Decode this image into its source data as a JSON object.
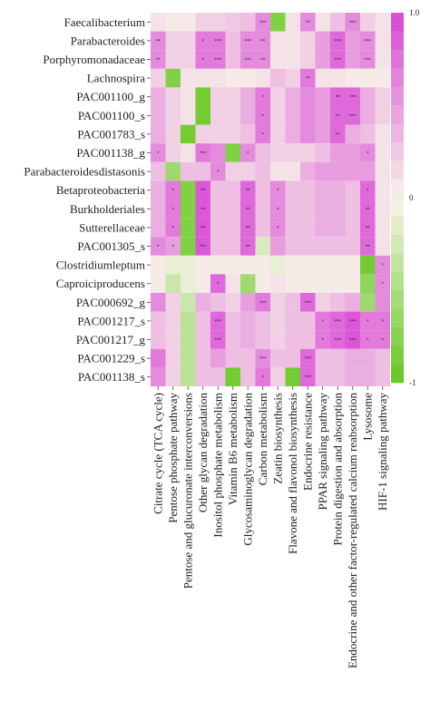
{
  "chart_data": {
    "type": "heatmap",
    "rows": [
      "Faecalibacterium",
      "Parabacteroides",
      "Porphyromonadaceae",
      "Lachnospira",
      "PAC001100_g",
      "PAC001100_s",
      "PAC001783_s",
      "PAC001138_g",
      "Parabacteroidesdistasonis",
      "Betaproteobacteria",
      "Burkholderiales",
      "Sutterellaceae",
      "PAC001305_s",
      "Clostridiumleptum",
      "Caproiciproducens",
      "PAC000692_g",
      "PAC001217_s",
      "PAC001217_g",
      "PAC001229_s",
      "PAC001138_s"
    ],
    "columns": [
      "Citrate cycle (TCA cycle)",
      "Pentose phosphate pathway",
      "Pentose and glucuronate interconversions",
      "Other glycan degradation",
      "Inositol phosphate metabolism",
      "Vitamin B6 metabolism",
      "Glycosaminoglycan degradation",
      "Carbon metabolism",
      "Zeatin biosynthesis",
      "Flavone and flavonol biosynthesis",
      "Endocrine resistance",
      "PPAR signaling pathway",
      "Protein digestion and absorption",
      "Endocrine and other factor-regulated calcium reabsorption",
      "Lysosome",
      "HIF-1 signaling pathway"
    ],
    "values": [
      [
        0.1,
        0.05,
        0.05,
        0.2,
        0.2,
        0.25,
        0.3,
        0.6,
        -0.8,
        0.1,
        0.6,
        0.1,
        0.3,
        0.6,
        0.2,
        0.1
      ],
      [
        0.6,
        0.2,
        0.2,
        0.7,
        0.7,
        0.3,
        0.6,
        0.6,
        0.1,
        0.1,
        0.2,
        0.5,
        0.8,
        0.5,
        0.6,
        0.1
      ],
      [
        0.6,
        0.2,
        0.2,
        0.7,
        0.7,
        0.3,
        0.6,
        0.6,
        0.1,
        0.1,
        0.2,
        0.5,
        0.8,
        0.5,
        0.6,
        0.1
      ],
      [
        0.2,
        -0.8,
        0.1,
        0.1,
        0.1,
        0.05,
        0.05,
        0.1,
        0.3,
        0.2,
        0.7,
        0.1,
        0.1,
        0.05,
        0.05,
        0.05
      ],
      [
        0.4,
        0.2,
        0.1,
        -0.9,
        0.2,
        0.2,
        0.4,
        0.7,
        0.2,
        0.4,
        0.6,
        0.5,
        0.8,
        0.8,
        0.4,
        0.2
      ],
      [
        0.4,
        0.2,
        0.1,
        -0.9,
        0.2,
        0.2,
        0.4,
        0.7,
        0.2,
        0.4,
        0.6,
        0.5,
        0.8,
        0.8,
        0.4,
        0.2
      ],
      [
        0.4,
        0.2,
        -0.9,
        0.2,
        0.2,
        0.2,
        0.3,
        0.7,
        0.2,
        0.4,
        0.6,
        0.5,
        0.8,
        0.4,
        0.3,
        0.1
      ],
      [
        0.6,
        0.2,
        0.1,
        0.7,
        0.6,
        -0.8,
        0.6,
        0.3,
        0.2,
        0.2,
        0.2,
        0.3,
        0.5,
        0.5,
        0.6,
        0.1
      ],
      [
        0.3,
        -0.6,
        0.3,
        0.3,
        0.6,
        0.2,
        0.2,
        0.3,
        0.1,
        0.1,
        0.4,
        0.5,
        0.5,
        0.5,
        0.5,
        0.1
      ],
      [
        0.4,
        0.7,
        -0.8,
        0.9,
        0.3,
        0.3,
        0.8,
        0.3,
        0.6,
        0.3,
        0.3,
        0.4,
        0.4,
        0.3,
        0.8,
        0.1
      ],
      [
        0.4,
        0.7,
        -0.8,
        0.9,
        0.3,
        0.3,
        0.8,
        0.3,
        0.6,
        0.3,
        0.3,
        0.4,
        0.4,
        0.3,
        0.8,
        0.1
      ],
      [
        0.4,
        0.7,
        -0.8,
        0.9,
        0.3,
        0.3,
        0.8,
        0.3,
        0.6,
        0.3,
        0.3,
        0.4,
        0.4,
        0.3,
        0.8,
        0.1
      ],
      [
        0.6,
        0.5,
        -0.8,
        0.9,
        0.3,
        0.3,
        0.8,
        -0.2,
        0.5,
        0.3,
        0.3,
        0.3,
        0.3,
        0.3,
        0.8,
        0.1
      ],
      [
        0.05,
        -0.1,
        -0.1,
        0.05,
        0.05,
        0.05,
        0.05,
        0.05,
        -0.1,
        0.05,
        0.05,
        0.05,
        0.05,
        0.05,
        -0.9,
        0.6
      ],
      [
        0.05,
        -0.3,
        -0.1,
        0.05,
        0.8,
        0.1,
        -0.6,
        0.05,
        0.1,
        0.05,
        0.05,
        0.05,
        0.05,
        0.05,
        -0.7,
        0.6
      ],
      [
        0.6,
        0.2,
        -0.3,
        0.4,
        0.3,
        0.2,
        0.5,
        0.7,
        0.2,
        0.3,
        0.8,
        0.2,
        0.3,
        0.4,
        -0.6,
        0.6
      ],
      [
        0.3,
        0.2,
        -0.4,
        0.3,
        0.8,
        0.3,
        0.4,
        0.3,
        0.2,
        0.3,
        0.3,
        0.7,
        0.8,
        0.9,
        0.7,
        0.7
      ],
      [
        0.3,
        0.2,
        -0.4,
        0.3,
        0.8,
        0.3,
        0.4,
        0.3,
        0.2,
        0.3,
        0.3,
        0.7,
        0.8,
        0.9,
        0.7,
        0.7
      ],
      [
        0.7,
        0.2,
        -0.4,
        0.3,
        0.5,
        0.3,
        0.3,
        0.6,
        0.3,
        0.3,
        0.8,
        0.3,
        0.3,
        0.4,
        0.4,
        0.3
      ],
      [
        0.6,
        0.2,
        -0.4,
        0.3,
        0.3,
        -0.9,
        0.3,
        0.7,
        0.2,
        -0.9,
        0.8,
        0.3,
        0.3,
        0.4,
        0.4,
        0.3
      ]
    ],
    "stars": [
      [
        "",
        "",
        "",
        "",
        "",
        "",
        "",
        "***",
        "",
        "",
        "**",
        "",
        "",
        "***",
        "",
        ""
      ],
      [
        "**",
        "",
        "",
        "*",
        "***",
        "",
        "***",
        "**",
        "",
        "",
        "",
        "",
        "***",
        "",
        "***",
        ""
      ],
      [
        "**",
        "",
        "",
        "*",
        "***",
        "",
        "***",
        "**",
        "",
        "",
        "",
        "",
        "***",
        "",
        "***",
        ""
      ],
      [
        "",
        "",
        "",
        "",
        "",
        "",
        "",
        "",
        "",
        "",
        "**",
        "",
        "",
        "",
        "",
        ""
      ],
      [
        "",
        "",
        "",
        "",
        "",
        "",
        "",
        "*",
        "",
        "",
        "",
        "",
        "**",
        "***",
        "",
        ""
      ],
      [
        "",
        "",
        "",
        "",
        "",
        "",
        "",
        "*",
        "",
        "",
        "",
        "",
        "**",
        "***",
        "",
        ""
      ],
      [
        "",
        "",
        "",
        "",
        "",
        "",
        "",
        "*",
        "",
        "",
        "",
        "",
        "**",
        "",
        "",
        ""
      ],
      [
        "*",
        "",
        "",
        "***",
        "",
        "",
        "*",
        "",
        "",
        "",
        "",
        "",
        "",
        "",
        "*",
        ""
      ],
      [
        "",
        "",
        "",
        "",
        "*",
        "",
        "",
        "",
        "",
        "",
        "",
        "",
        "",
        "",
        "",
        ""
      ],
      [
        "",
        "*",
        "",
        "**",
        "",
        "",
        "**",
        "",
        "*",
        "",
        "",
        "",
        "",
        "",
        "*",
        ""
      ],
      [
        "",
        "*",
        "",
        "**",
        "",
        "",
        "**",
        "",
        "*",
        "",
        "",
        "",
        "",
        "",
        "**",
        ""
      ],
      [
        "",
        "*",
        "",
        "**",
        "",
        "",
        "**",
        "",
        "*",
        "",
        "",
        "",
        "",
        "",
        "**",
        ""
      ],
      [
        "*",
        "*",
        "",
        "***",
        "",
        "",
        "**",
        "",
        "",
        "",
        "",
        "",
        "",
        "",
        "**",
        ""
      ],
      [
        "",
        "",
        "",
        "",
        "",
        "",
        "",
        "",
        "",
        "",
        "",
        "",
        "",
        "",
        "",
        "*"
      ],
      [
        "",
        "",
        "",
        "",
        "*",
        "",
        "",
        "",
        "",
        "",
        "",
        "",
        "",
        "",
        "",
        "*"
      ],
      [
        "",
        "",
        "",
        "",
        "",
        "",
        "",
        "***",
        "",
        "",
        "***",
        "",
        "",
        "",
        "",
        ""
      ],
      [
        "",
        "",
        "",
        "",
        "***",
        "",
        "",
        "",
        "",
        "",
        "",
        "*",
        "***",
        "***",
        "*",
        "*"
      ],
      [
        "",
        "",
        "",
        "",
        "***",
        "",
        "",
        "",
        "",
        "",
        "",
        "*",
        "***",
        "***",
        "*",
        "*"
      ],
      [
        "",
        "",
        "",
        "",
        "",
        "",
        "",
        "***",
        "",
        "",
        "***",
        "",
        "",
        "",
        "",
        ""
      ],
      [
        "",
        "",
        "",
        "",
        "",
        "",
        "",
        "*",
        "",
        "",
        "***",
        "",
        "",
        "",
        "",
        ""
      ]
    ],
    "value_range": [
      -1,
      1
    ],
    "colorbar": {
      "ticks": [
        1.0,
        0,
        -1
      ],
      "tick_labels": [
        "1.0",
        "0",
        "-1"
      ],
      "colors": {
        "positive": "#d946d6",
        "neutral": "#f7f3e8",
        "negative": "#64c81e"
      }
    }
  }
}
